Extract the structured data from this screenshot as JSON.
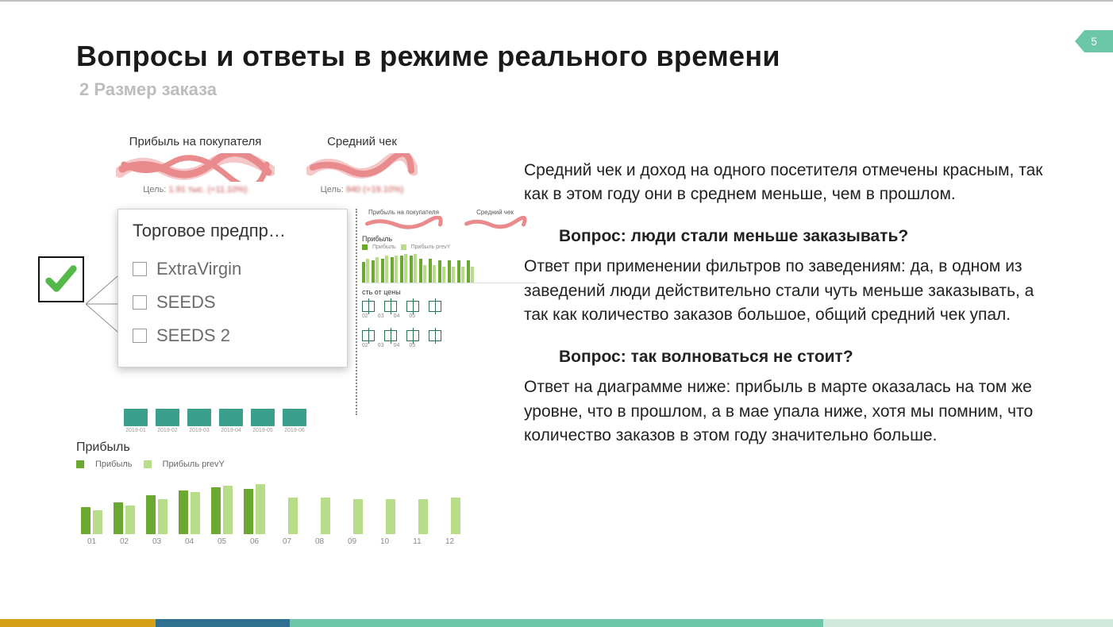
{
  "page_number": "5",
  "title": "Вопросы и ответы в режиме реального времени",
  "subtitle": "2 Размер заказа",
  "kpi": {
    "left": {
      "label": "Прибыль на покупателя",
      "target_prefix": "Цель:",
      "target_blur": "1.91 тыс. (+11.10%)"
    },
    "right": {
      "label": "Средний чек",
      "target_prefix": "Цель:",
      "target_blur": "940 (+19.10%)"
    },
    "scribble_color": "#e98a8d",
    "scribble_shadow": "#f5c7c8"
  },
  "checkmark_color": "#54b948",
  "filter": {
    "title": "Торговое предпр…",
    "items": [
      "ExtraVirgin",
      "SEEDS",
      "SEEDS 2"
    ]
  },
  "mini_dashboard": {
    "kpi_labels": [
      "Прибыль на покупателя",
      "Средний чек"
    ],
    "section1": "Прибыль",
    "legend": [
      "Прибыль",
      "Прибыль prevY"
    ],
    "bar_pairs": [
      [
        26,
        30
      ],
      [
        28,
        32
      ],
      [
        30,
        34
      ],
      [
        32,
        34
      ],
      [
        34,
        36
      ],
      [
        34,
        36
      ],
      [
        30,
        22
      ],
      [
        30,
        22
      ],
      [
        28,
        20
      ],
      [
        28,
        20
      ],
      [
        28,
        20
      ],
      [
        28,
        20
      ]
    ],
    "price_label": "сть от цены",
    "months_top": [
      "02",
      "03",
      "04",
      "05"
    ],
    "months_bottom": [
      "02",
      "03",
      "04",
      "05"
    ]
  },
  "teal_bars": {
    "values": [
      22,
      22,
      22,
      22,
      22,
      22
    ],
    "labels": [
      "2019-01",
      "2019-02",
      "2019-03",
      "2019-04",
      "2019-05",
      "2019-06"
    ],
    "color": "#3aa08c"
  },
  "profit_chart": {
    "title": "Прибыль",
    "legend": [
      "Прибыль",
      "Прибыль prevY"
    ],
    "colors": {
      "current": "#6aa82f",
      "prev": "#b7dd88"
    },
    "months": [
      "01",
      "02",
      "03",
      "04",
      "05",
      "06",
      "07",
      "08",
      "09",
      "10",
      "11",
      "12"
    ],
    "current": [
      32,
      38,
      46,
      52,
      56,
      54,
      0,
      0,
      0,
      0,
      0,
      0
    ],
    "prev": [
      28,
      34,
      42,
      50,
      58,
      60,
      44,
      44,
      42,
      42,
      42,
      44
    ],
    "ymax": 70
  },
  "copy": {
    "p1": "Средний чек и доход на одного посетителя отмечены красным, так как в этом году они в среднем меньше, чем в прошлом.",
    "q1": "Вопрос: люди стали меньше заказывать?",
    "p2": "Ответ при применении фильтров по заведениям: да, в одном из заведений люди действительно стали чуть меньше заказывать, а так как количество заказов большое, общий средний чек упал.",
    "q2": "Вопрос: так волноваться не стоит?",
    "p3": "Ответ на диаграмме ниже: прибыль в марте оказалась на том же уровне, что в прошлом, а в мае упала ниже, хотя мы помним, что количество заказов в этом году значительно больше."
  },
  "footer_colors": [
    {
      "c": "#d4a017",
      "w": 14
    },
    {
      "c": "#2f6f8f",
      "w": 12
    },
    {
      "c": "#6bc7a8",
      "w": 48
    },
    {
      "c": "#cfe9dc",
      "w": 26
    }
  ]
}
